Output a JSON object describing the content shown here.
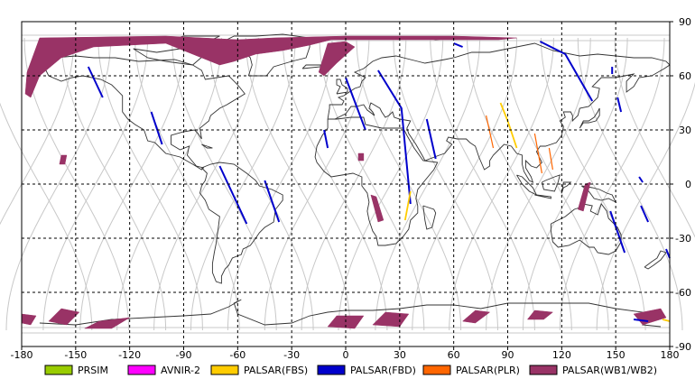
{
  "map": {
    "projection": "sinusoidal-swaths-over-equirectangular",
    "lon_range": [
      -180,
      180
    ],
    "lat_range": [
      -90,
      90
    ],
    "grid": true,
    "x_ticks": [
      -180,
      -150,
      -120,
      -90,
      -60,
      -30,
      0,
      30,
      60,
      90,
      120,
      150,
      180
    ],
    "y_ticks": [
      90,
      60,
      30,
      0,
      -30,
      -60,
      -90
    ],
    "x_tick_labels": [
      "-180",
      "-150",
      "-120",
      "-90",
      "-60",
      "-30",
      "0",
      "30",
      "60",
      "90",
      "120",
      "150",
      "180"
    ],
    "y_tick_labels": [
      "90",
      "60",
      "30",
      "0",
      "-30",
      "-60",
      "-90"
    ]
  },
  "legend": {
    "items": [
      {
        "label": "PRSIM",
        "color": "#99cc00"
      },
      {
        "label": "AVNIR-2",
        "color": "#ff00ff"
      },
      {
        "label": "PALSAR(FBS)",
        "color": "#ffcc00"
      },
      {
        "label": "PALSAR(FBD)",
        "color": "#0000cc"
      },
      {
        "label": "PALSAR(PLR)",
        "color": "#ff6600"
      },
      {
        "label": "PALSAR(WB1/WB2)",
        "color": "#993366"
      }
    ]
  },
  "colors": {
    "orbit": "#c8c8c8",
    "coast": "#333333",
    "grid": "#000000",
    "fbd": "#0000cc",
    "fbs": "#ffcc00",
    "plr": "#ff6600",
    "wb": "#993366"
  }
}
